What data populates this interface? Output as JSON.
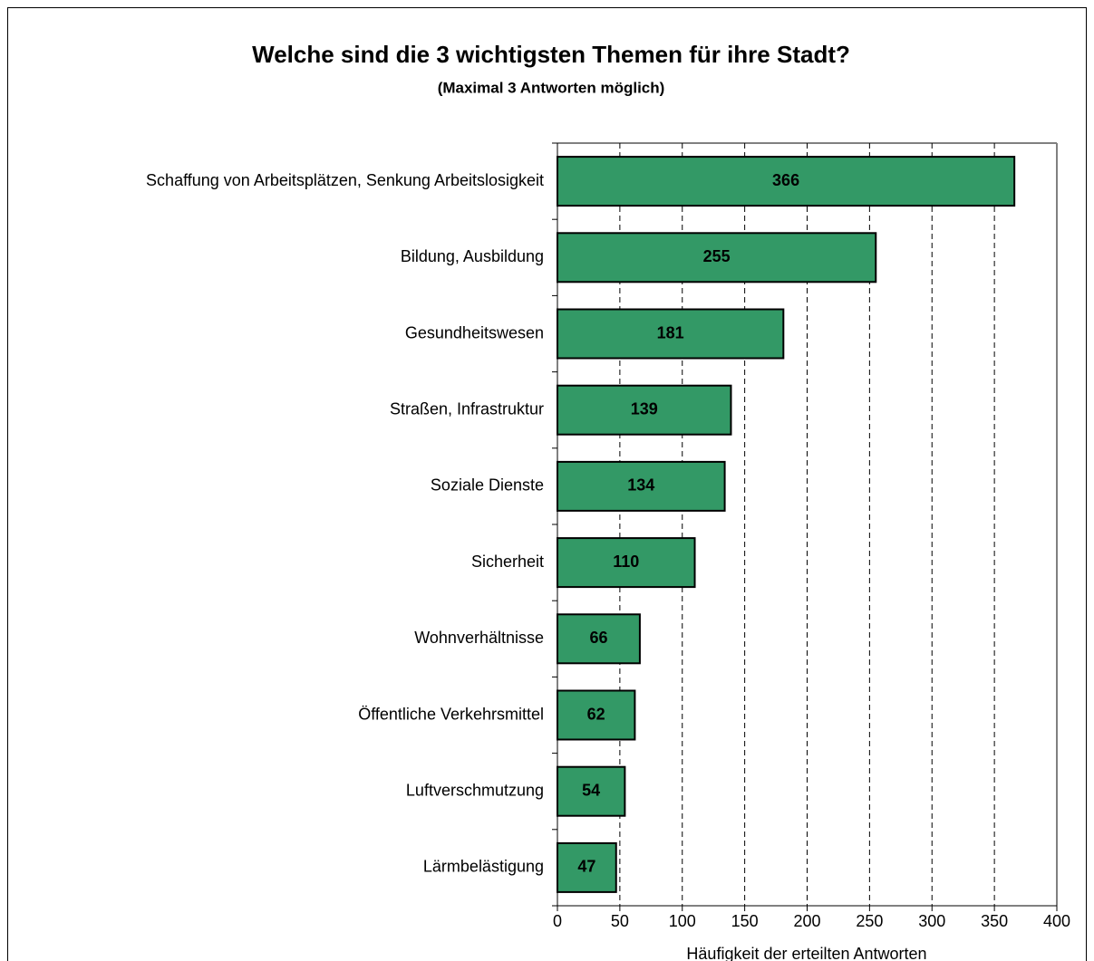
{
  "chart_data": {
    "type": "bar",
    "orientation": "horizontal",
    "title": "Welche sind die 3 wichtigsten Themen für ihre Stadt?",
    "subtitle": "(Maximal 3 Antworten möglich)",
    "x_label": "Häufigkeit der erteilten Antworten",
    "categories": [
      "Schaffung von Arbeitsplätzen, Senkung Arbeitslosigkeit",
      "Bildung, Ausbildung",
      "Gesundheitswesen",
      "Straßen, Infrastruktur",
      "Soziale Dienste",
      "Sicherheit",
      "Wohnverhältnisse",
      "Öffentliche Verkehrsmittel",
      "Luftverschmutzung",
      "Lärmbelästigung"
    ],
    "values": [
      366,
      255,
      181,
      139,
      134,
      110,
      66,
      62,
      54,
      47
    ],
    "color": "#339966",
    "xlim": [
      0,
      400
    ],
    "xticks": [
      0,
      50,
      100,
      150,
      200,
      250,
      300,
      350,
      400
    ],
    "grid": true
  }
}
